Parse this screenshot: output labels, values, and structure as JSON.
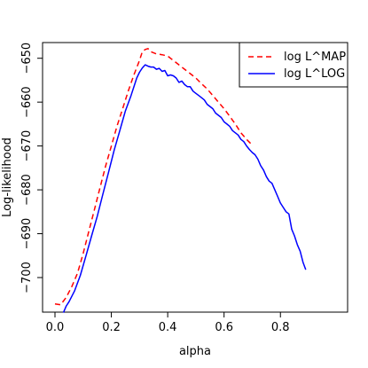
{
  "chart_data": {
    "type": "line",
    "title": "",
    "xlabel": "alpha",
    "ylabel": "Log-likelihood",
    "xlim": [
      0.0,
      0.9
    ],
    "ylim": [
      -708,
      -645
    ],
    "xticks": [
      0.0,
      0.2,
      0.4,
      0.6,
      0.8
    ],
    "xtick_labels": [
      "0.0",
      "0.2",
      "0.4",
      "0.6",
      "0.8"
    ],
    "yticks": [
      -700,
      -690,
      -680,
      -670,
      -660,
      -650
    ],
    "ytick_labels": [
      "−700",
      "−690",
      "−680",
      "−670",
      "−660",
      "−650"
    ],
    "grid": false,
    "legend": {
      "position": "top-right"
    },
    "series": [
      {
        "name": "log L^MAP",
        "color": "#ff0000",
        "dash": "dashed",
        "points": [
          [
            0.0,
            -706.0
          ],
          [
            0.02,
            -706.2
          ],
          [
            0.04,
            -704.5
          ],
          [
            0.06,
            -702.0
          ],
          [
            0.08,
            -699.0
          ],
          [
            0.1,
            -694.5
          ],
          [
            0.12,
            -689.5
          ],
          [
            0.14,
            -684.5
          ],
          [
            0.16,
            -679.5
          ],
          [
            0.18,
            -674.5
          ],
          [
            0.2,
            -670.0
          ],
          [
            0.22,
            -665.5
          ],
          [
            0.24,
            -661.5
          ],
          [
            0.26,
            -657.5
          ],
          [
            0.28,
            -653.8
          ],
          [
            0.3,
            -650.5
          ],
          [
            0.31,
            -648.5
          ],
          [
            0.32,
            -648.0
          ],
          [
            0.33,
            -647.8
          ],
          [
            0.34,
            -648.5
          ],
          [
            0.36,
            -649.0
          ],
          [
            0.38,
            -649.2
          ],
          [
            0.4,
            -649.5
          ],
          [
            0.42,
            -650.5
          ],
          [
            0.44,
            -651.5
          ],
          [
            0.46,
            -652.5
          ],
          [
            0.48,
            -653.5
          ],
          [
            0.5,
            -654.5
          ],
          [
            0.52,
            -655.8
          ],
          [
            0.54,
            -657.0
          ],
          [
            0.56,
            -658.5
          ],
          [
            0.58,
            -660.0
          ],
          [
            0.6,
            -661.5
          ],
          [
            0.62,
            -663.2
          ],
          [
            0.64,
            -665.0
          ],
          [
            0.66,
            -667.0
          ],
          [
            0.68,
            -668.5
          ],
          [
            0.7,
            -669.8
          ]
        ]
      },
      {
        "name": "log L^LOG",
        "color": "#0000ff",
        "dash": "solid",
        "points": [
          [
            0.03,
            -708.0
          ],
          [
            0.04,
            -706.5
          ],
          [
            0.05,
            -705.5
          ],
          [
            0.07,
            -703.0
          ],
          [
            0.09,
            -699.5
          ],
          [
            0.11,
            -695.0
          ],
          [
            0.13,
            -690.5
          ],
          [
            0.15,
            -686.0
          ],
          [
            0.17,
            -681.0
          ],
          [
            0.19,
            -676.0
          ],
          [
            0.21,
            -671.0
          ],
          [
            0.23,
            -666.5
          ],
          [
            0.25,
            -662.0
          ],
          [
            0.27,
            -658.5
          ],
          [
            0.29,
            -654.5
          ],
          [
            0.3,
            -653.2
          ],
          [
            0.31,
            -652.2
          ],
          [
            0.32,
            -651.5
          ],
          [
            0.33,
            -651.8
          ],
          [
            0.34,
            -652.0
          ],
          [
            0.35,
            -652.0
          ],
          [
            0.36,
            -652.5
          ],
          [
            0.37,
            -652.3
          ],
          [
            0.38,
            -653.0
          ],
          [
            0.39,
            -652.8
          ],
          [
            0.4,
            -654.0
          ],
          [
            0.41,
            -653.8
          ],
          [
            0.42,
            -654.0
          ],
          [
            0.43,
            -654.5
          ],
          [
            0.44,
            -655.5
          ],
          [
            0.45,
            -655.2
          ],
          [
            0.46,
            -656.0
          ],
          [
            0.47,
            -656.5
          ],
          [
            0.48,
            -656.5
          ],
          [
            0.49,
            -657.5
          ],
          [
            0.5,
            -658.0
          ],
          [
            0.51,
            -658.5
          ],
          [
            0.52,
            -659.0
          ],
          [
            0.53,
            -659.5
          ],
          [
            0.54,
            -660.5
          ],
          [
            0.55,
            -661.0
          ],
          [
            0.56,
            -661.5
          ],
          [
            0.57,
            -662.5
          ],
          [
            0.58,
            -663.0
          ],
          [
            0.59,
            -663.5
          ],
          [
            0.6,
            -664.5
          ],
          [
            0.61,
            -665.0
          ],
          [
            0.62,
            -665.5
          ],
          [
            0.63,
            -666.5
          ],
          [
            0.64,
            -667.0
          ],
          [
            0.65,
            -667.5
          ],
          [
            0.66,
            -668.5
          ],
          [
            0.67,
            -669.0
          ],
          [
            0.68,
            -670.0
          ],
          [
            0.69,
            -670.8
          ],
          [
            0.7,
            -671.5
          ],
          [
            0.71,
            -672.0
          ],
          [
            0.72,
            -673.0
          ],
          [
            0.73,
            -674.5
          ],
          [
            0.74,
            -675.5
          ],
          [
            0.75,
            -677.0
          ],
          [
            0.76,
            -678.0
          ],
          [
            0.77,
            -678.5
          ],
          [
            0.78,
            -680.0
          ],
          [
            0.79,
            -681.5
          ],
          [
            0.8,
            -683.0
          ],
          [
            0.81,
            -684.0
          ],
          [
            0.82,
            -685.0
          ],
          [
            0.83,
            -685.5
          ],
          [
            0.84,
            -689.0
          ],
          [
            0.85,
            -690.5
          ],
          [
            0.86,
            -692.5
          ],
          [
            0.87,
            -694.0
          ],
          [
            0.88,
            -696.5
          ],
          [
            0.89,
            -698.2
          ]
        ]
      }
    ]
  }
}
